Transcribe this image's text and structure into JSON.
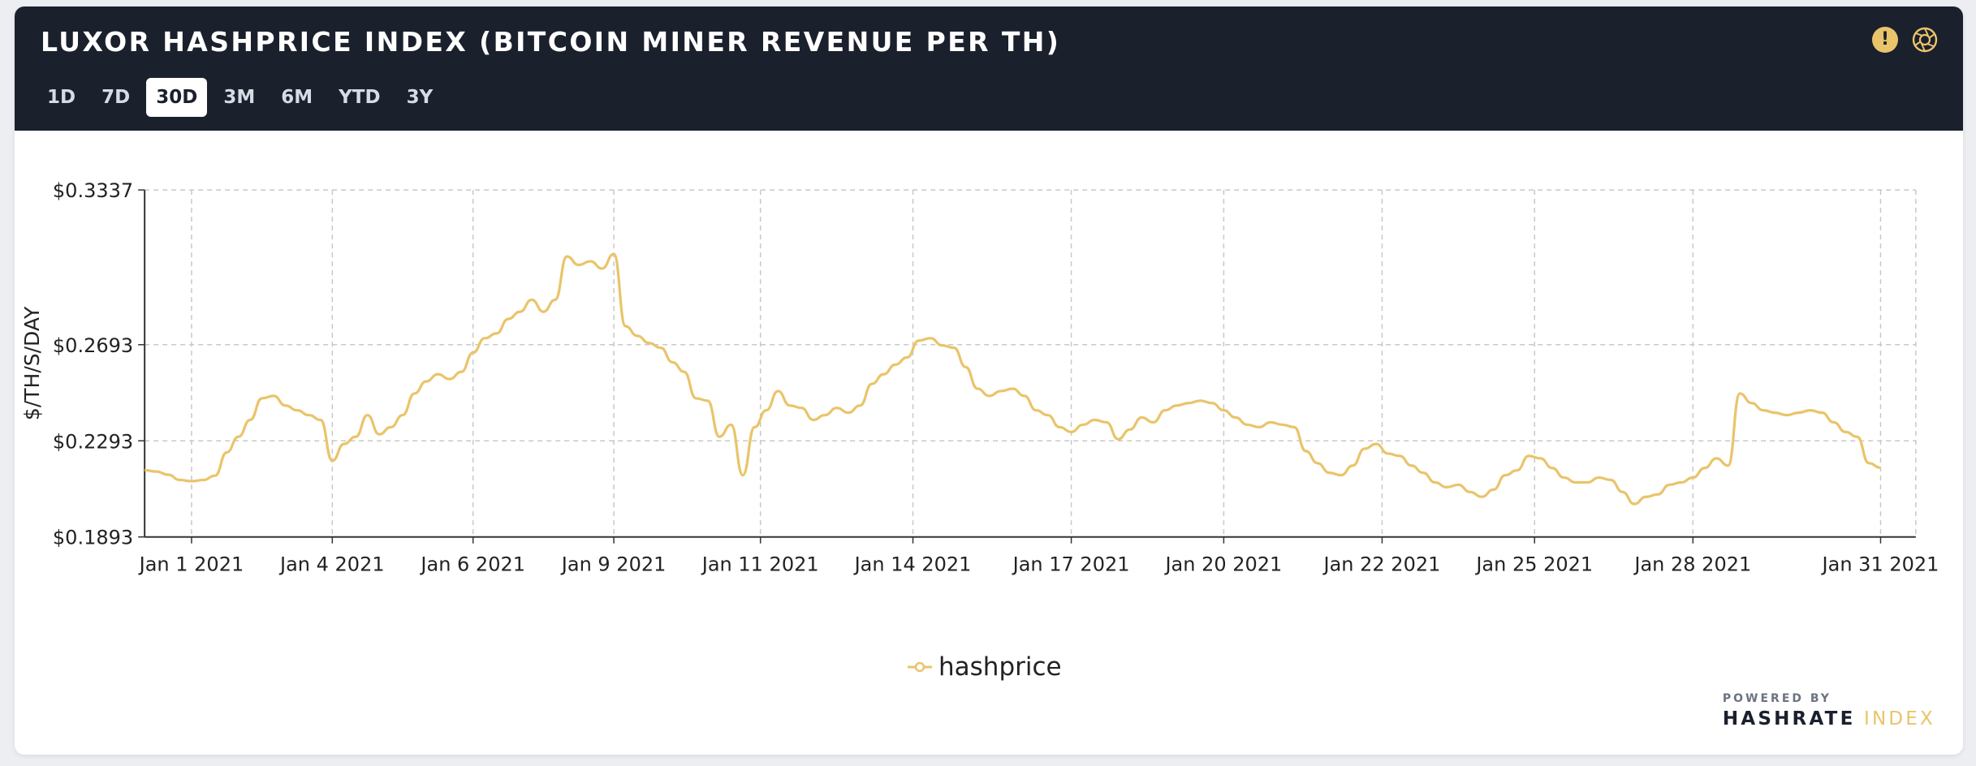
{
  "header": {
    "title": "LUXOR HASHPRICE INDEX (BITCOIN MINER REVENUE PER TH)",
    "tabs": [
      {
        "label": "1D",
        "active": false
      },
      {
        "label": "7D",
        "active": false
      },
      {
        "label": "30D",
        "active": true
      },
      {
        "label": "3M",
        "active": false
      },
      {
        "label": "6M",
        "active": false
      },
      {
        "label": "YTD",
        "active": false
      },
      {
        "label": "3Y",
        "active": false
      }
    ],
    "icons": [
      "warning-icon",
      "camera-icon"
    ]
  },
  "legend": {
    "label": "hashprice"
  },
  "footer": {
    "powered_by": "POWERED BY",
    "brand_part1": "HASHRATE",
    "brand_part2": "INDEX"
  },
  "colors": {
    "header_bg": "#1b202d",
    "line": "#e9c46a",
    "grid": "#c8c8c8",
    "text": "#222222"
  },
  "chart_data": {
    "type": "line",
    "title": "LUXOR HASHPRICE INDEX (BITCOIN MINER REVENUE PER TH)",
    "ylabel": "$/TH/S/DAY",
    "xlabel": "",
    "x_range": [
      0.8,
      31.0
    ],
    "ylim": [
      0.1893,
      0.3337
    ],
    "y_ticks": [
      {
        "value": 0.1893,
        "label": "$0.1893"
      },
      {
        "value": 0.2293,
        "label": "$0.2293"
      },
      {
        "value": 0.2693,
        "label": "$0.2693"
      },
      {
        "value": 0.3337,
        "label": "$0.3337"
      }
    ],
    "x_ticks": [
      {
        "value": 1.6,
        "label": "Jan 1 2021"
      },
      {
        "value": 4.0,
        "label": "Jan 4 2021"
      },
      {
        "value": 6.4,
        "label": "Jan 6 2021"
      },
      {
        "value": 8.8,
        "label": "Jan 9 2021"
      },
      {
        "value": 11.3,
        "label": "Jan 11 2021"
      },
      {
        "value": 13.9,
        "label": "Jan 14 2021"
      },
      {
        "value": 16.6,
        "label": "Jan 17 2021"
      },
      {
        "value": 19.2,
        "label": "Jan 20 2021"
      },
      {
        "value": 21.9,
        "label": "Jan 22 2021"
      },
      {
        "value": 24.5,
        "label": "Jan 25 2021"
      },
      {
        "value": 27.2,
        "label": "Jan 28 2021"
      },
      {
        "value": 30.4,
        "label": "Jan 31 2021"
      }
    ],
    "grid": true,
    "legend_position": "bottom-center",
    "series": [
      {
        "name": "hashprice",
        "points": [
          [
            0.8,
            0.2171
          ],
          [
            1.0,
            0.2165
          ],
          [
            1.2,
            0.2152
          ],
          [
            1.4,
            0.213
          ],
          [
            1.6,
            0.2125
          ],
          [
            1.8,
            0.213
          ],
          [
            2.0,
            0.2148
          ],
          [
            2.2,
            0.2245
          ],
          [
            2.4,
            0.231
          ],
          [
            2.6,
            0.238
          ],
          [
            2.8,
            0.247
          ],
          [
            3.0,
            0.248
          ],
          [
            3.2,
            0.244
          ],
          [
            3.4,
            0.242
          ],
          [
            3.6,
            0.24
          ],
          [
            3.8,
            0.238
          ],
          [
            4.0,
            0.221
          ],
          [
            4.2,
            0.228
          ],
          [
            4.4,
            0.231
          ],
          [
            4.6,
            0.24
          ],
          [
            4.8,
            0.232
          ],
          [
            5.0,
            0.235
          ],
          [
            5.2,
            0.24
          ],
          [
            5.4,
            0.249
          ],
          [
            5.6,
            0.254
          ],
          [
            5.8,
            0.257
          ],
          [
            6.0,
            0.255
          ],
          [
            6.2,
            0.258
          ],
          [
            6.4,
            0.266
          ],
          [
            6.6,
            0.272
          ],
          [
            6.8,
            0.274
          ],
          [
            7.0,
            0.28
          ],
          [
            7.2,
            0.283
          ],
          [
            7.4,
            0.288
          ],
          [
            7.6,
            0.283
          ],
          [
            7.8,
            0.288
          ],
          [
            8.0,
            0.306
          ],
          [
            8.2,
            0.3025
          ],
          [
            8.4,
            0.304
          ],
          [
            8.6,
            0.301
          ],
          [
            8.8,
            0.307
          ],
          [
            9.0,
            0.277
          ],
          [
            9.2,
            0.273
          ],
          [
            9.4,
            0.27
          ],
          [
            9.6,
            0.268
          ],
          [
            9.8,
            0.262
          ],
          [
            10.0,
            0.258
          ],
          [
            10.2,
            0.247
          ],
          [
            10.4,
            0.246
          ],
          [
            10.6,
            0.231
          ],
          [
            10.8,
            0.236
          ],
          [
            11.0,
            0.215
          ],
          [
            11.2,
            0.235
          ],
          [
            11.4,
            0.242
          ],
          [
            11.6,
            0.25
          ],
          [
            11.8,
            0.244
          ],
          [
            12.0,
            0.243
          ],
          [
            12.2,
            0.238
          ],
          [
            12.4,
            0.24
          ],
          [
            12.6,
            0.243
          ],
          [
            12.8,
            0.241
          ],
          [
            13.0,
            0.244
          ],
          [
            13.2,
            0.253
          ],
          [
            13.4,
            0.257
          ],
          [
            13.6,
            0.261
          ],
          [
            13.8,
            0.264
          ],
          [
            14.0,
            0.271
          ],
          [
            14.2,
            0.272
          ],
          [
            14.4,
            0.269
          ],
          [
            14.6,
            0.268
          ],
          [
            14.8,
            0.26
          ],
          [
            15.0,
            0.251
          ],
          [
            15.2,
            0.248
          ],
          [
            15.4,
            0.25
          ],
          [
            15.6,
            0.251
          ],
          [
            15.8,
            0.248
          ],
          [
            16.0,
            0.242
          ],
          [
            16.2,
            0.24
          ],
          [
            16.4,
            0.235
          ],
          [
            16.6,
            0.233
          ],
          [
            16.8,
            0.236
          ],
          [
            17.0,
            0.238
          ],
          [
            17.2,
            0.237
          ],
          [
            17.4,
            0.23
          ],
          [
            17.6,
            0.234
          ],
          [
            17.8,
            0.239
          ],
          [
            18.0,
            0.237
          ],
          [
            18.2,
            0.242
          ],
          [
            18.4,
            0.244
          ],
          [
            18.6,
            0.245
          ],
          [
            18.8,
            0.246
          ],
          [
            19.0,
            0.245
          ],
          [
            19.2,
            0.242
          ],
          [
            19.4,
            0.239
          ],
          [
            19.6,
            0.236
          ],
          [
            19.8,
            0.235
          ],
          [
            20.0,
            0.237
          ],
          [
            20.2,
            0.236
          ],
          [
            20.4,
            0.235
          ],
          [
            20.6,
            0.225
          ],
          [
            20.8,
            0.22
          ],
          [
            21.0,
            0.216
          ],
          [
            21.2,
            0.215
          ],
          [
            21.4,
            0.219
          ],
          [
            21.6,
            0.226
          ],
          [
            21.8,
            0.228
          ],
          [
            22.0,
            0.224
          ],
          [
            22.2,
            0.223
          ],
          [
            22.4,
            0.219
          ],
          [
            22.6,
            0.216
          ],
          [
            22.8,
            0.212
          ],
          [
            23.0,
            0.21
          ],
          [
            23.2,
            0.211
          ],
          [
            23.4,
            0.208
          ],
          [
            23.6,
            0.206
          ],
          [
            23.8,
            0.209
          ],
          [
            24.0,
            0.215
          ],
          [
            24.2,
            0.217
          ],
          [
            24.4,
            0.223
          ],
          [
            24.6,
            0.222
          ],
          [
            24.8,
            0.218
          ],
          [
            25.0,
            0.214
          ],
          [
            25.2,
            0.212
          ],
          [
            25.4,
            0.212
          ],
          [
            25.6,
            0.214
          ],
          [
            25.8,
            0.213
          ],
          [
            26.0,
            0.208
          ],
          [
            26.2,
            0.203
          ],
          [
            26.4,
            0.206
          ],
          [
            26.6,
            0.207
          ],
          [
            26.8,
            0.211
          ],
          [
            27.0,
            0.212
          ],
          [
            27.2,
            0.214
          ],
          [
            27.4,
            0.218
          ],
          [
            27.6,
            0.222
          ],
          [
            27.8,
            0.219
          ],
          [
            28.0,
            0.249
          ],
          [
            28.2,
            0.245
          ],
          [
            28.4,
            0.242
          ],
          [
            28.6,
            0.241
          ],
          [
            28.8,
            0.24
          ],
          [
            29.0,
            0.241
          ],
          [
            29.2,
            0.242
          ],
          [
            29.4,
            0.241
          ],
          [
            29.6,
            0.237
          ],
          [
            29.8,
            0.233
          ],
          [
            30.0,
            0.231
          ],
          [
            30.2,
            0.22
          ],
          [
            30.4,
            0.2181
          ]
        ]
      }
    ]
  }
}
